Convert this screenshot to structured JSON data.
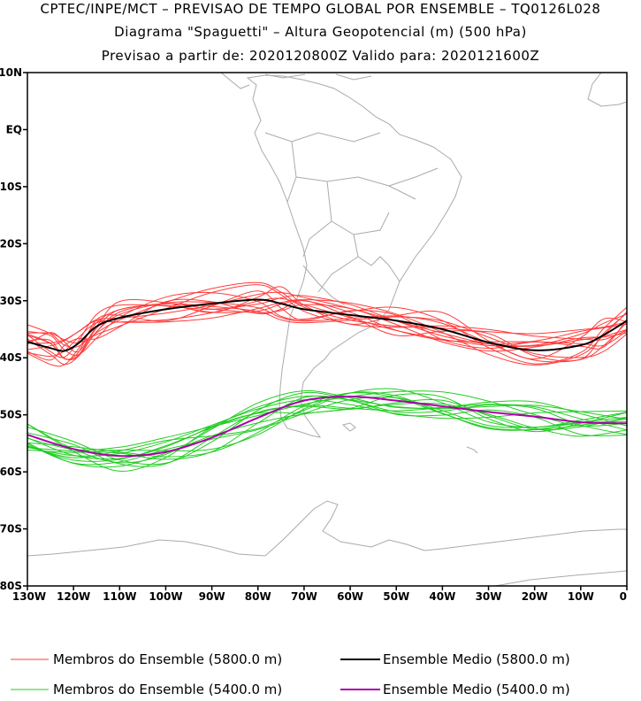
{
  "title": {
    "line1": "CPTEC/INPE/MCT – PREVISAO DE TEMPO GLOBAL POR ENSEMBLE – TQ0126L028",
    "line2": "Diagrama \"Spaguetti\" – Altura Geopotencial (m) (500 hPa)",
    "line3": "Previsao a partir de: 2020120800Z   Valido para: 2020121600Z"
  },
  "axes": {
    "lat_ticks": [
      "10N",
      "EQ",
      "10S",
      "20S",
      "30S",
      "40S",
      "50S",
      "60S",
      "70S",
      "80S"
    ],
    "lon_ticks": [
      "130W",
      "120W",
      "110W",
      "100W",
      "90W",
      "80W",
      "70W",
      "60W",
      "50W",
      "40W",
      "30W",
      "20W",
      "10W",
      "0"
    ],
    "lon_range": [
      -130,
      0
    ],
    "lat_range": [
      -80,
      10
    ]
  },
  "legend": {
    "red_members": "Membros do Ensemble (5800.0 m)",
    "black_mean": "Ensemble Medio (5800.0 m)",
    "green_members": "Membros do Ensemble (5400.0 m)",
    "purple_mean": "Ensemble Medio (5400.0 m)"
  },
  "colors": {
    "member_5800": "#ff3b3b",
    "mean_5800": "#000000",
    "member_5400": "#22cc22",
    "mean_5400": "#aa00aa",
    "coast": "#aaaaaa"
  },
  "chart_data": {
    "type": "line",
    "x_unit": "degrees longitude",
    "y_unit": "degrees latitude",
    "series": [
      {
        "name": "Ensemble Medio (5800.0 m)",
        "x": [
          -130,
          -125,
          -122,
          -119,
          -115,
          -110,
          -100,
          -90,
          -80,
          -75,
          -70,
          -60,
          -50,
          -40,
          -30,
          -20,
          -10,
          -5,
          0
        ],
        "y": [
          -37.2,
          -38.3,
          -38.8,
          -37.5,
          -34.5,
          -33,
          -31.5,
          -30.5,
          -29.8,
          -30.5,
          -31.5,
          -32.5,
          -33.5,
          -35,
          -37.3,
          -38.7,
          -37.8,
          -36,
          -33.5
        ]
      },
      {
        "name": "Ensemble Medio (5400.0 m)",
        "x": [
          -130,
          -120,
          -110,
          -100,
          -90,
          -80,
          -70,
          -60,
          -50,
          -40,
          -30,
          -20,
          -10,
          0
        ],
        "y": [
          -53.5,
          -56,
          -57.2,
          -56.5,
          -54,
          -50.5,
          -47.5,
          -46.8,
          -47.5,
          -48.5,
          -49.5,
          -50.3,
          -51.3,
          -51.5
        ]
      }
    ]
  }
}
